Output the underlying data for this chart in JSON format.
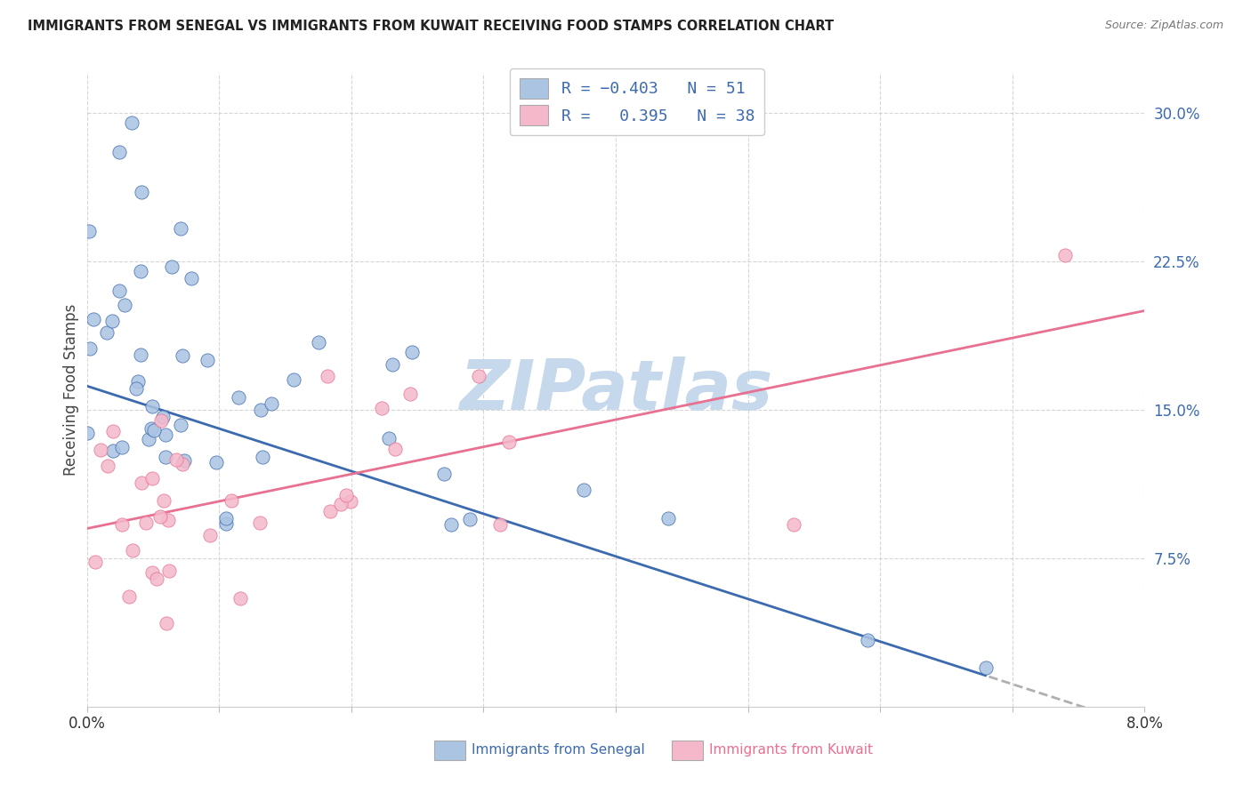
{
  "title": "IMMIGRANTS FROM SENEGAL VS IMMIGRANTS FROM KUWAIT RECEIVING FOOD STAMPS CORRELATION CHART",
  "source": "Source: ZipAtlas.com",
  "xlabel_senegal": "Immigrants from Senegal",
  "xlabel_kuwait": "Immigrants from Kuwait",
  "ylabel": "Receiving Food Stamps",
  "xlim": [
    0.0,
    0.08
  ],
  "ylim": [
    0.0,
    0.32
  ],
  "xtick_positions": [
    0.0,
    0.01,
    0.02,
    0.03,
    0.04,
    0.05,
    0.06,
    0.07,
    0.08
  ],
  "xticklabels": [
    "0.0%",
    "",
    "",
    "",
    "",
    "",
    "",
    "",
    "8.0%"
  ],
  "ytick_positions": [
    0.075,
    0.15,
    0.225,
    0.3
  ],
  "ytick_labels_right": [
    "7.5%",
    "15.0%",
    "22.5%",
    "30.0%"
  ],
  "legend_line1": "R = -0.403   N = 51",
  "legend_line2": "R =  0.395   N = 38",
  "color_senegal": "#aac4e2",
  "color_kuwait": "#f4b8ca",
  "line_color_senegal": "#3c6aaf",
  "line_color_kuwait": "#e87090",
  "line_color_dash": "#b0b0b0",
  "watermark": "ZIPatlas",
  "watermark_color": "#c5d8ec",
  "bg_color": "#ffffff",
  "grid_color": "#cccccc",
  "title_color": "#222222",
  "source_color": "#777777",
  "ylabel_color": "#444444",
  "ytick_color": "#3c6aaf",
  "xtick_color": "#333333"
}
